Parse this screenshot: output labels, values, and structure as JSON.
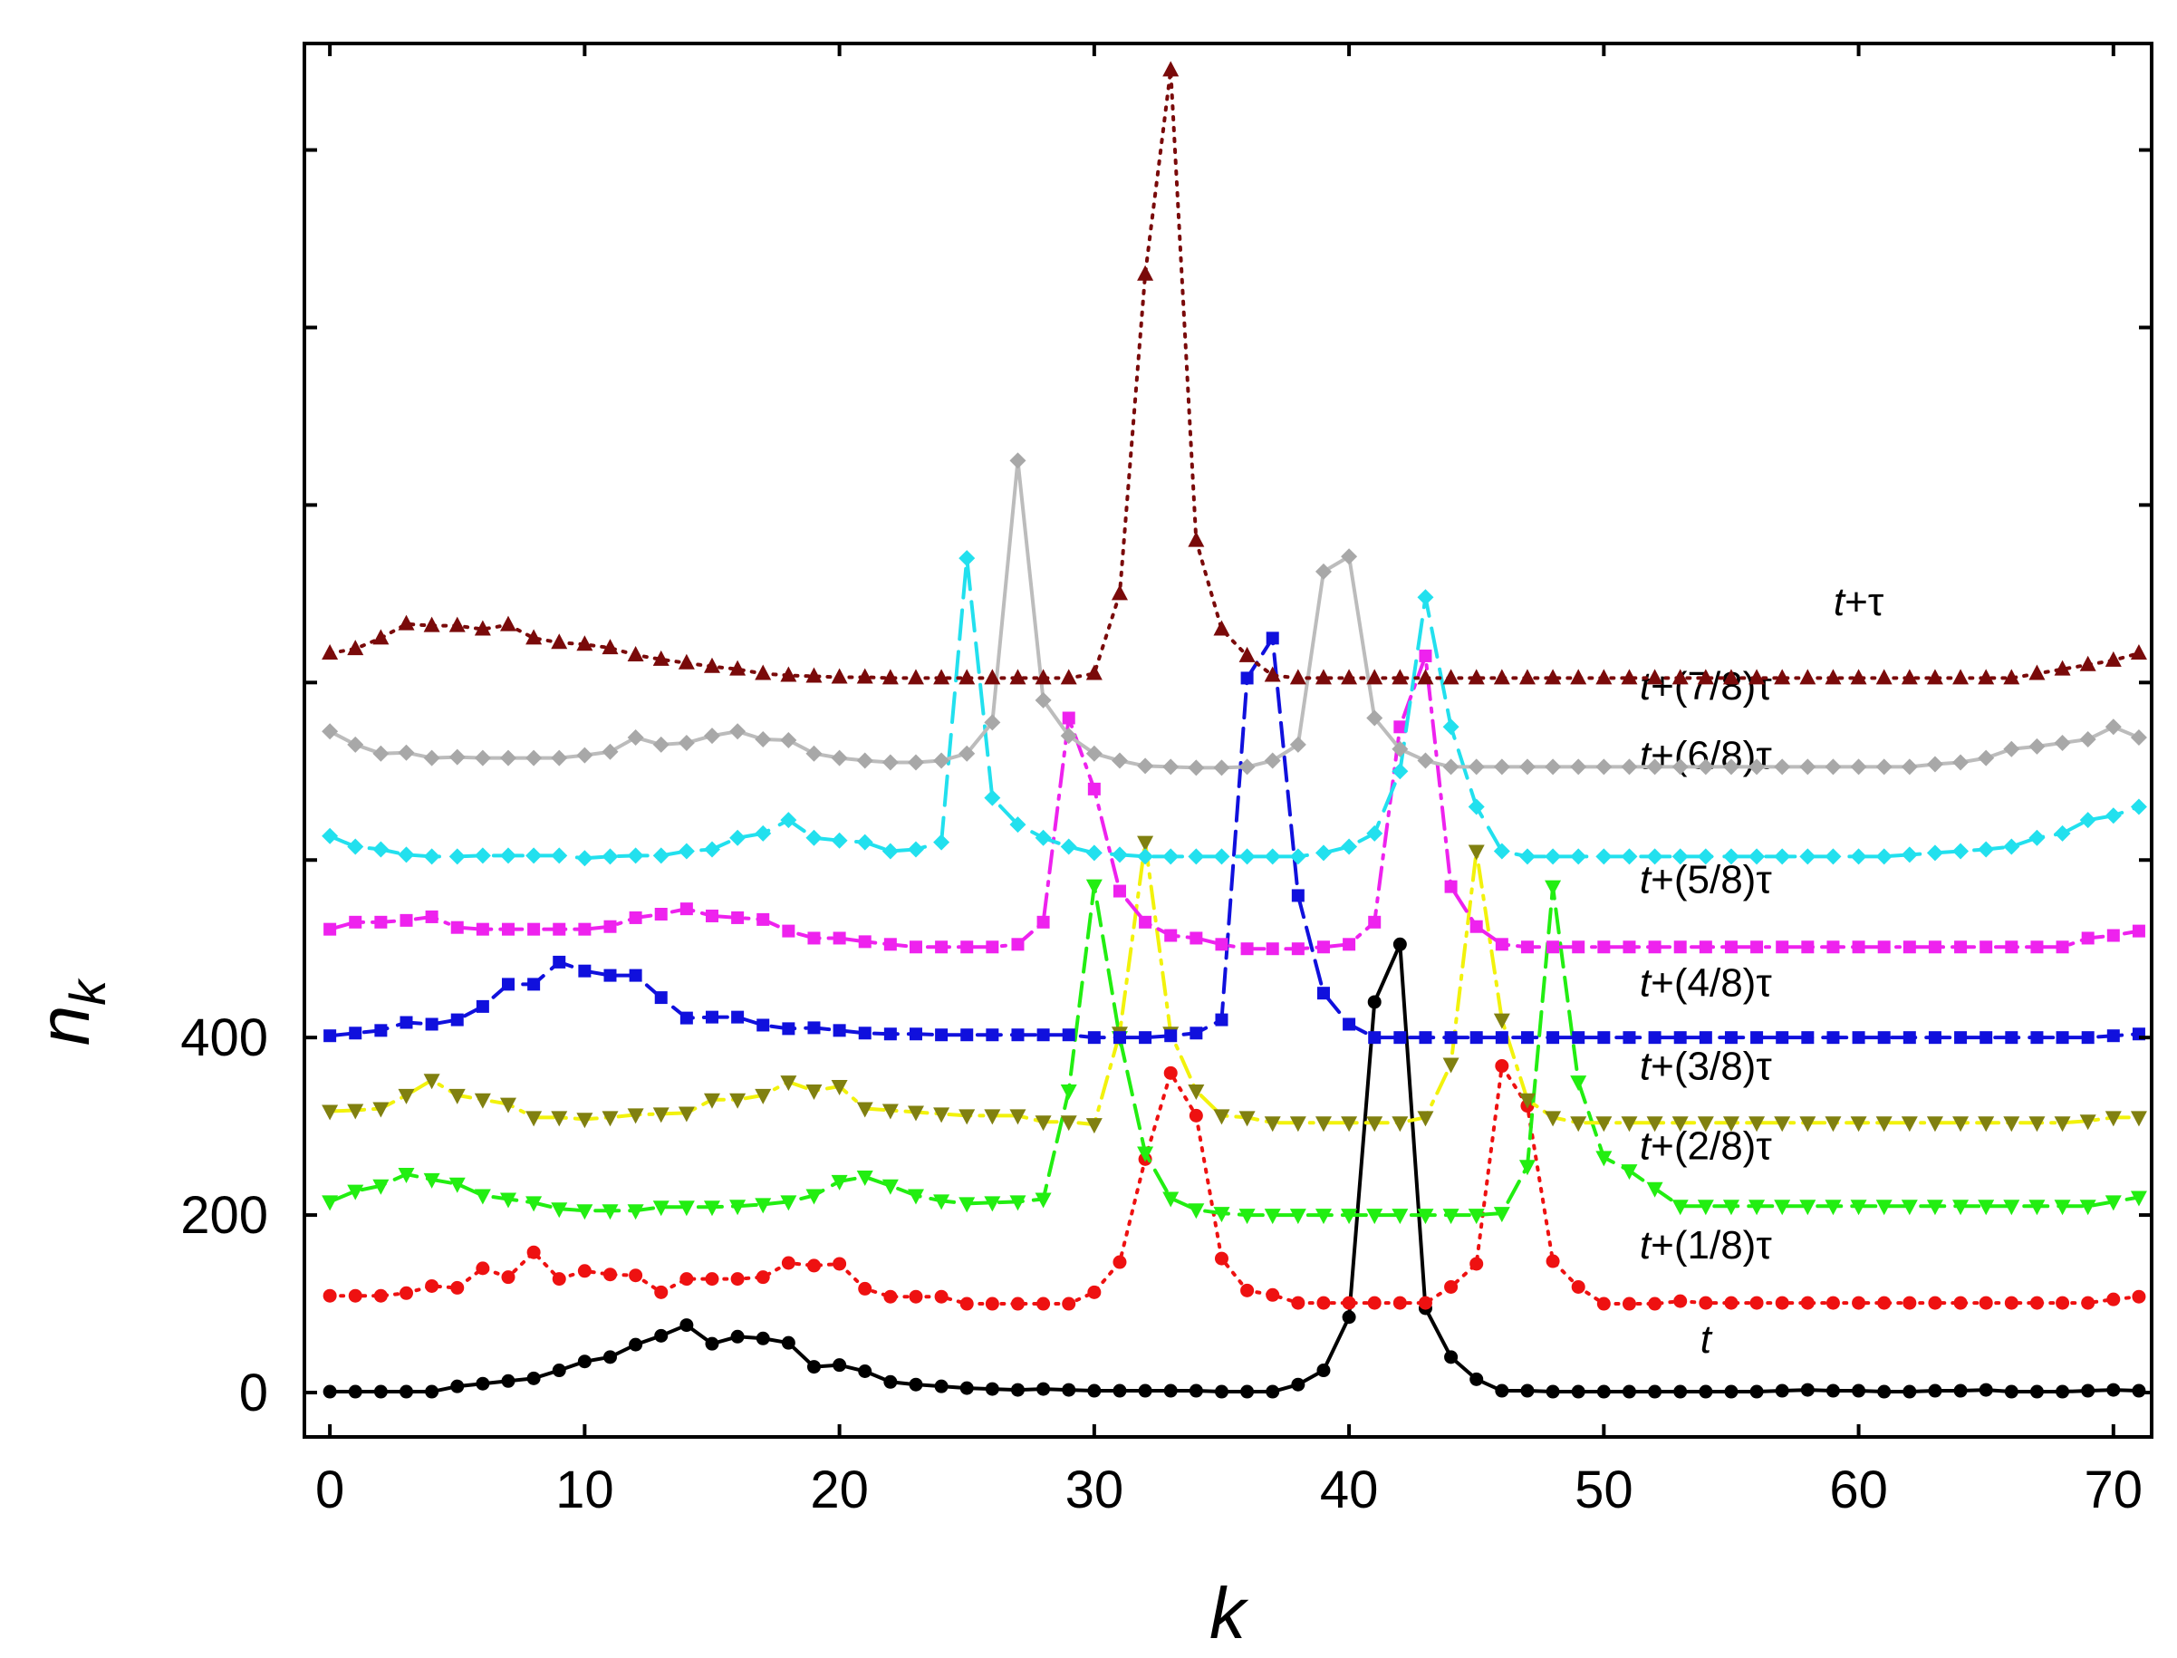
{
  "chart_data": {
    "type": "line",
    "title": "",
    "xlabel": "k",
    "ylabel_main": "n",
    "ylabel_sub": "k",
    "xlim": [
      -1,
      71.5
    ],
    "ylim": [
      -50,
      1520
    ],
    "xticks": [
      0,
      10,
      20,
      30,
      40,
      50,
      60,
      70
    ],
    "xtick_labels": [
      "0",
      "10",
      "20",
      "30",
      "40",
      "50",
      "60",
      "70"
    ],
    "yticks": [
      0,
      200,
      400,
      600,
      800,
      1000,
      1200,
      1400
    ],
    "ytick_labels": [
      "0",
      "200",
      "400",
      "",
      "",
      "",
      "",
      ""
    ],
    "series": [
      {
        "name": "t",
        "italic": "t",
        "suffix": "",
        "color": "#000000",
        "marker": "circle",
        "dash": "solid",
        "labelX": 54,
        "values": [
          1,
          1,
          1,
          1,
          1,
          7,
          10,
          13,
          16,
          25,
          35,
          40,
          54,
          64,
          76,
          55,
          63,
          61,
          56,
          29,
          31,
          24,
          12,
          9,
          7,
          5,
          4,
          3,
          4,
          3,
          2,
          2,
          2,
          2,
          2,
          1,
          1,
          1,
          9,
          25,
          85,
          440,
          505,
          95,
          40,
          15,
          2,
          2,
          1,
          1,
          1,
          1,
          1,
          1,
          1,
          1,
          1,
          2,
          3,
          2,
          2,
          1,
          1,
          2,
          2,
          3,
          1,
          1,
          1,
          2,
          3,
          2
        ]
      },
      {
        "name": "t+(1/8)τ",
        "italic": "t",
        "suffix": "+(1/8)τ",
        "color": "#ee1111",
        "marker": "circle",
        "dash": "dotted",
        "labelX": 54,
        "values": [
          109,
          109,
          109,
          112,
          120,
          118,
          140,
          130,
          158,
          128,
          137,
          133,
          132,
          113,
          128,
          128,
          128,
          130,
          146,
          143,
          145,
          117,
          108,
          108,
          108,
          100,
          100,
          100,
          100,
          100,
          113,
          147,
          263,
          360,
          312,
          151,
          115,
          110,
          101,
          101,
          101,
          101,
          101,
          101,
          119,
          145,
          368,
          323,
          148,
          119,
          100,
          100,
          100,
          103,
          101,
          101,
          101,
          101,
          101,
          101,
          101,
          101,
          101,
          101,
          101,
          101,
          101,
          101,
          101,
          101,
          105,
          108
        ]
      },
      {
        "name": "t+(2/8)τ",
        "italic": "t",
        "suffix": "+(2/8)τ",
        "color": "#22ee11",
        "marker": "tri-down",
        "dash": "dashed",
        "labelX": 54,
        "values": [
          215,
          227,
          233,
          246,
          240,
          235,
          222,
          218,
          214,
          207,
          205,
          205,
          205,
          209,
          209,
          209,
          210,
          212,
          215,
          222,
          238,
          243,
          233,
          222,
          216,
          213,
          214,
          215,
          218,
          340,
          571,
          400,
          270,
          219,
          206,
          202,
          200,
          200,
          200,
          200,
          200,
          200,
          200,
          200,
          200,
          200,
          202,
          255,
          570,
          350,
          265,
          250,
          230,
          210,
          210,
          210,
          210,
          210,
          210,
          210,
          210,
          210,
          210,
          210,
          210,
          210,
          210,
          210,
          210,
          210,
          215,
          220
        ]
      },
      {
        "name": "t+(3/8)τ",
        "italic": "t",
        "suffix": "+(3/8)τ",
        "color": "#808010",
        "lineColor": "#f2f20c",
        "marker": "tri-down",
        "dash": "dashdot",
        "labelX": 54,
        "values": [
          317,
          318,
          320,
          335,
          352,
          335,
          330,
          325,
          310,
          310,
          308,
          310,
          313,
          314,
          315,
          330,
          330,
          335,
          350,
          340,
          345,
          320,
          318,
          316,
          314,
          312,
          312,
          312,
          305,
          305,
          302,
          405,
          620,
          405,
          340,
          312,
          310,
          304,
          304,
          304,
          304,
          304,
          304,
          310,
          370,
          610,
          420,
          330,
          310,
          304,
          304,
          304,
          304,
          304,
          304,
          304,
          304,
          304,
          304,
          304,
          304,
          304,
          304,
          304,
          304,
          304,
          304,
          304,
          304,
          306,
          310,
          310
        ]
      },
      {
        "name": "t+(4/8)τ",
        "italic": "t",
        "suffix": "+(4/8)τ",
        "color": "#1010dd",
        "marker": "square",
        "dash": "dashed",
        "labelX": 54,
        "values": [
          402,
          405,
          408,
          417,
          415,
          420,
          435,
          460,
          460,
          485,
          475,
          470,
          470,
          445,
          422,
          423,
          423,
          414,
          410,
          411,
          408,
          405,
          404,
          404,
          403,
          403,
          403,
          403,
          403,
          403,
          400,
          400,
          400,
          402,
          405,
          420,
          805,
          850,
          560,
          450,
          415,
          400,
          400,
          400,
          400,
          400,
          400,
          400,
          400,
          400,
          400,
          400,
          400,
          400,
          400,
          400,
          400,
          400,
          400,
          400,
          400,
          400,
          400,
          400,
          400,
          400,
          400,
          400,
          400,
          400,
          402,
          404
        ]
      },
      {
        "name": "t+(5/8)τ",
        "italic": "t",
        "suffix": "+(5/8)τ",
        "color": "#ee22ee",
        "marker": "square",
        "dash": "dashdot",
        "labelX": 54,
        "values": [
          522,
          530,
          530,
          532,
          536,
          524,
          522,
          522,
          522,
          522,
          522,
          525,
          535,
          539,
          545,
          537,
          535,
          533,
          520,
          512,
          512,
          508,
          505,
          502,
          502,
          502,
          502,
          505,
          530,
          760,
          680,
          565,
          530,
          515,
          512,
          505,
          500,
          500,
          500,
          502,
          505,
          530,
          750,
          830,
          570,
          525,
          505,
          502,
          502,
          502,
          502,
          502,
          502,
          502,
          502,
          502,
          502,
          502,
          502,
          502,
          502,
          502,
          502,
          502,
          502,
          502,
          502,
          502,
          502,
          512,
          515,
          520
        ]
      },
      {
        "name": "t+(6/8)τ",
        "italic": "t",
        "suffix": "+(6/8)τ",
        "color": "#22e0ee",
        "marker": "diamond",
        "dash": "longdash",
        "labelX": 54,
        "values": [
          627,
          615,
          612,
          606,
          604,
          604,
          605,
          605,
          605,
          605,
          602,
          604,
          605,
          605,
          610,
          612,
          625,
          630,
          645,
          625,
          622,
          620,
          610,
          612,
          620,
          940,
          670,
          640,
          625,
          615,
          608,
          606,
          604,
          604,
          604,
          604,
          604,
          604,
          604,
          608,
          615,
          630,
          700,
          896,
          750,
          660,
          610,
          604,
          604,
          604,
          604,
          604,
          604,
          604,
          604,
          604,
          604,
          604,
          604,
          604,
          604,
          604,
          606,
          608,
          610,
          612,
          615,
          625,
          630,
          645,
          650,
          660
        ]
      },
      {
        "name": "t+(7/8)τ",
        "italic": "t",
        "suffix": "+(7/8)τ",
        "color": "#a8a8a8",
        "lineColor": "#bcbcbc",
        "marker": "diamond",
        "dash": "solid",
        "labelX": 54,
        "values": [
          745,
          730,
          720,
          721,
          715,
          716,
          715,
          715,
          715,
          715,
          718,
          722,
          738,
          730,
          732,
          740,
          745,
          736,
          735,
          720,
          715,
          712,
          710,
          710,
          712,
          720,
          755,
          1050,
          780,
          740,
          720,
          712,
          706,
          705,
          704,
          704,
          705,
          712,
          730,
          925,
          942,
          760,
          725,
          712,
          705,
          705,
          705,
          705,
          705,
          705,
          705,
          705,
          705,
          705,
          705,
          705,
          705,
          705,
          705,
          705,
          705,
          705,
          705,
          708,
          710,
          715,
          725,
          728,
          732,
          736,
          750,
          738
        ]
      },
      {
        "name": "t+τ",
        "italic": "t",
        "suffix": "+τ",
        "color": "#7a0a0a",
        "marker": "tri-up",
        "dash": "dotted",
        "labelX": 60,
        "values": [
          833,
          838,
          850,
          866,
          864,
          864,
          860,
          865,
          850,
          845,
          843,
          839,
          831,
          826,
          822,
          818,
          815,
          810,
          808,
          807,
          806,
          806,
          805,
          805,
          805,
          805,
          805,
          805,
          805,
          805,
          810,
          900,
          1260,
          1490,
          960,
          860,
          830,
          808,
          805,
          805,
          805,
          805,
          805,
          805,
          805,
          805,
          805,
          805,
          805,
          805,
          805,
          805,
          805,
          805,
          805,
          805,
          805,
          805,
          805,
          805,
          805,
          805,
          805,
          805,
          805,
          805,
          805,
          810,
          815,
          820,
          825,
          833
        ]
      }
    ]
  }
}
